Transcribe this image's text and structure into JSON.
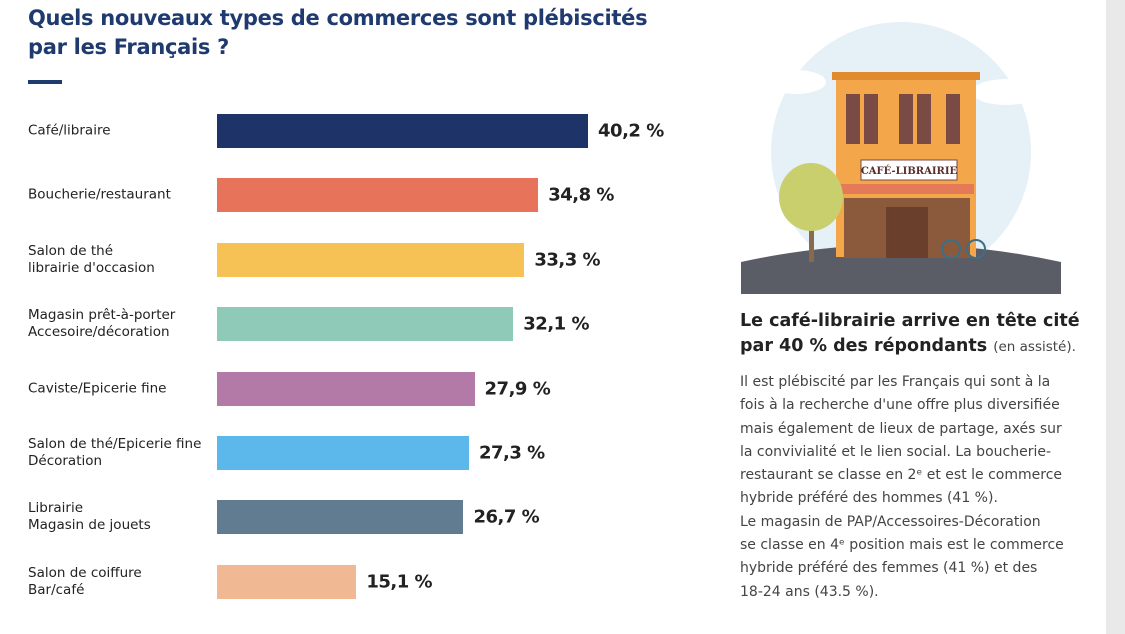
{
  "chart_data": {
    "type": "bar",
    "orientation": "horizontal",
    "title": "Quels nouveaux types de commerces sont plébiscités par les Français ?",
    "categories": [
      "Café/libraire",
      "Boucherie/restaurant",
      "Salon de thé\nlibrairie d'occasion",
      "Magasin prêt-à-porter\nAccesoire/décoration",
      "Caviste/Epicerie fine",
      "Salon de thé/Epicerie fine\nDécoration",
      "Librairie\nMagasin de jouets",
      "Salon de coiffure\nBar/café"
    ],
    "values": [
      40.2,
      34.8,
      33.3,
      32.1,
      27.9,
      27.3,
      26.7,
      15.1
    ],
    "value_labels": [
      "40,2 %",
      "34,8 %",
      "33,3 %",
      "32,1 %",
      "27,9 %",
      "27,3 %",
      "26,7 %",
      "15,1 %"
    ],
    "colors": [
      "#1e3468",
      "#e8735b",
      "#f6c155",
      "#8ecab7",
      "#b37aa8",
      "#5cb8ea",
      "#617b91",
      "#f0b994"
    ]
  },
  "illustration": {
    "sign": "CAFÉ-LIBRAIRIE"
  },
  "text": {
    "subheading": "Le café-librairie arrive en tête cité par 40 % des répondants",
    "subheading_note": "(en assisté).",
    "body_lines": [
      "Il est plébiscité par les Français qui sont à la",
      "fois à la recherche d'une offre plus diversifiée",
      "mais également de lieux de partage, axés sur",
      "la convivialité et le lien social. La boucherie-",
      "restaurant se classe en 2ᵉ et est le commerce",
      "hybride préféré des hommes (41 %).",
      "Le magasin de PAP/Accessoires-Décoration",
      "se classe en 4ᵉ position mais est le commerce",
      "hybride préféré des femmes (41 %) et des",
      "18-24 ans (43.5 %)."
    ]
  }
}
